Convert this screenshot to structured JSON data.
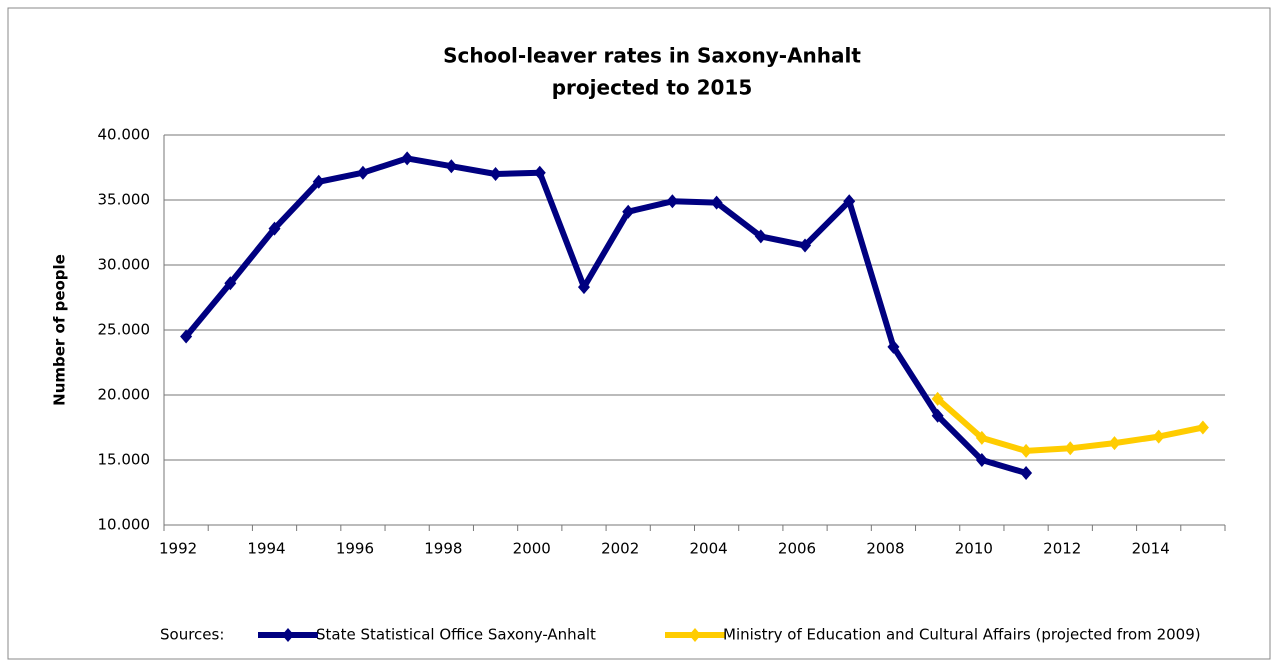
{
  "chart_data": {
    "type": "line",
    "title": [
      "School-leaver rates in Saxony-Anhalt",
      "projected to 2015"
    ],
    "y_label": "Number of people",
    "legend_title": "Sources:",
    "categories": [
      "1992",
      null,
      "1994",
      null,
      "1996",
      null,
      "1998",
      null,
      "2000",
      null,
      "2002",
      null,
      "2004",
      null,
      "2006",
      null,
      "2008",
      null,
      "2010",
      null,
      "2012",
      null,
      "2014",
      null
    ],
    "series": [
      {
        "name": "State Statistical Office Saxony-Anhalt",
        "color": "#000080",
        "values": [
          24500,
          28600,
          32800,
          36400,
          37100,
          38200,
          37600,
          37000,
          37100,
          28300,
          34100,
          34900,
          34800,
          32200,
          31500,
          34900,
          23700,
          18400,
          15000,
          14000,
          null,
          null,
          null,
          null
        ]
      },
      {
        "name": "Ministry of Education and Cultural Affairs (projected from 2009)",
        "color": "#ffcc00",
        "values": [
          null,
          null,
          null,
          null,
          null,
          null,
          null,
          null,
          null,
          null,
          null,
          null,
          null,
          null,
          null,
          null,
          null,
          19700,
          16700,
          15700,
          15900,
          16300,
          16800,
          17500
        ]
      }
    ],
    "ylim": [
      10000,
      40000
    ],
    "yticks": [
      {
        "value": 10000,
        "label": "10.000"
      },
      {
        "value": 15000,
        "label": "15.000"
      },
      {
        "value": 20000,
        "label": "20.000"
      },
      {
        "value": 25000,
        "label": "25.000"
      },
      {
        "value": 30000,
        "label": "30.000"
      },
      {
        "value": 35000,
        "label": "35.000"
      },
      {
        "value": 40000,
        "label": "40.000"
      }
    ],
    "grid": true
  }
}
